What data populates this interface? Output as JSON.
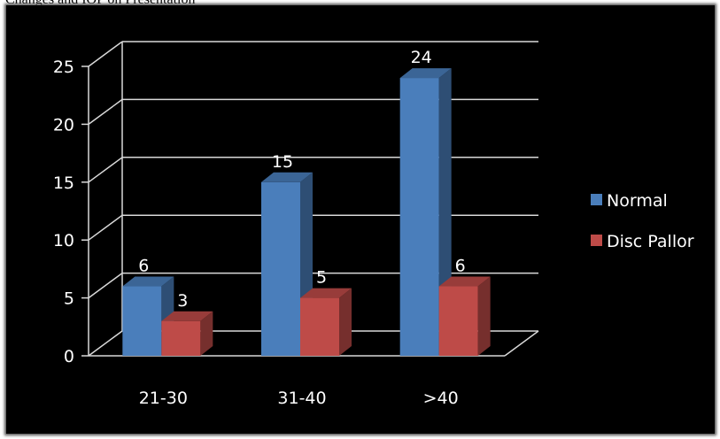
{
  "caption": "Changes and IOP on Presentation",
  "chart_data": {
    "type": "bar",
    "categories": [
      "21-30",
      "31-40",
      ">40"
    ],
    "series": [
      {
        "name": "Normal",
        "values": [
          6,
          15,
          24
        ],
        "color": "#4a7ebb"
      },
      {
        "name": "Disc Pallor",
        "values": [
          3,
          5,
          6
        ],
        "color": "#be4b48"
      }
    ],
    "ylim": [
      0,
      25
    ],
    "yticks": [
      "0",
      "5",
      "10",
      "15",
      "20",
      "25"
    ],
    "grid": true,
    "legend": "right",
    "style": "3d-clustered"
  }
}
